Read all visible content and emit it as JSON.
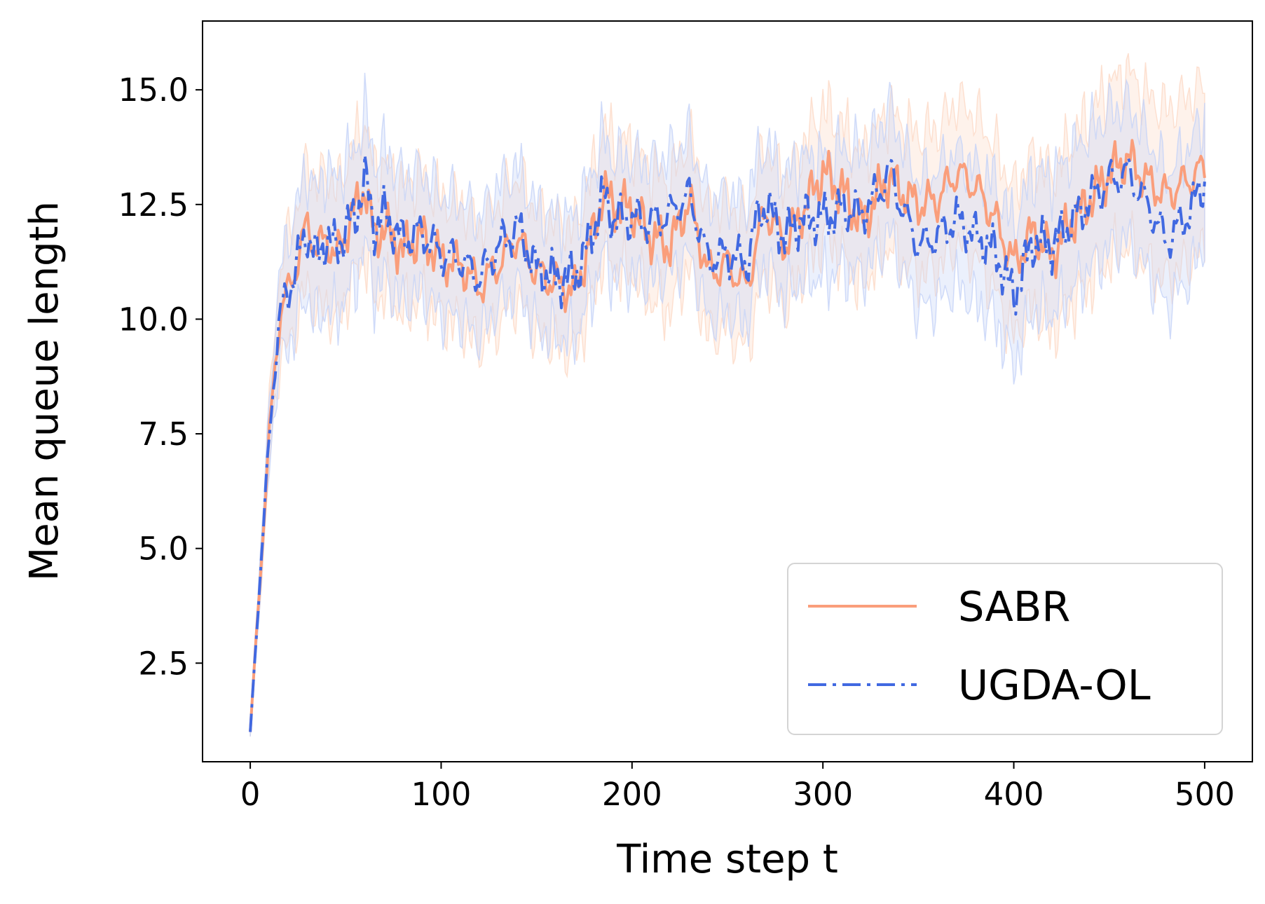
{
  "chart_data": {
    "type": "line",
    "title": "",
    "xlabel": "Time step t",
    "ylabel": "Mean queue length",
    "xlim": [
      -25,
      525
    ],
    "ylim": [
      0.35,
      16.5
    ],
    "xticks": [
      0,
      100,
      200,
      300,
      400,
      500
    ],
    "xtick_labels": [
      "0",
      "100",
      "200",
      "300",
      "400",
      "500"
    ],
    "yticks": [
      2.5,
      5.0,
      7.5,
      10.0,
      12.5,
      15.0
    ],
    "ytick_labels": [
      "2.5",
      "5.0",
      "7.5",
      "10.0",
      "12.5",
      "15.0"
    ],
    "grid": false,
    "legend_position": "lower-right",
    "series": [
      {
        "name": "SABR",
        "color": "#fa9e7b",
        "line_style": "solid",
        "band_color": "#fdd9c7",
        "keypoints": [
          [
            0,
            1.0
          ],
          [
            3,
            3.0
          ],
          [
            7,
            5.5
          ],
          [
            10,
            7.5
          ],
          [
            13,
            9.0
          ],
          [
            16,
            10.2
          ],
          [
            20,
            10.6
          ],
          [
            25,
            11.3
          ],
          [
            30,
            12.1
          ],
          [
            35,
            11.5
          ],
          [
            40,
            11.8
          ],
          [
            45,
            11.3
          ],
          [
            50,
            11.9
          ],
          [
            55,
            12.4
          ],
          [
            60,
            12.9
          ],
          [
            65,
            11.8
          ],
          [
            70,
            12.0
          ],
          [
            80,
            11.5
          ],
          [
            90,
            11.8
          ],
          [
            100,
            11.3
          ],
          [
            110,
            11.2
          ],
          [
            120,
            10.7
          ],
          [
            130,
            11.2
          ],
          [
            140,
            11.8
          ],
          [
            150,
            11.0
          ],
          [
            160,
            10.8
          ],
          [
            170,
            10.6
          ],
          [
            180,
            11.9
          ],
          [
            185,
            12.8
          ],
          [
            190,
            12.5
          ],
          [
            200,
            12.4
          ],
          [
            210,
            11.8
          ],
          [
            220,
            11.6
          ],
          [
            230,
            12.6
          ],
          [
            240,
            11.0
          ],
          [
            250,
            11.2
          ],
          [
            260,
            10.7
          ],
          [
            265,
            11.6
          ],
          [
            270,
            12.4
          ],
          [
            280,
            11.6
          ],
          [
            290,
            12.4
          ],
          [
            300,
            13.2
          ],
          [
            310,
            12.8
          ],
          [
            320,
            12.1
          ],
          [
            330,
            12.8
          ],
          [
            335,
            13.1
          ],
          [
            340,
            12.8
          ],
          [
            350,
            12.5
          ],
          [
            360,
            12.6
          ],
          [
            370,
            13.2
          ],
          [
            380,
            12.9
          ],
          [
            390,
            12.2
          ],
          [
            400,
            11.2
          ],
          [
            410,
            11.9
          ],
          [
            420,
            11.4
          ],
          [
            430,
            12.1
          ],
          [
            440,
            12.6
          ],
          [
            450,
            13.2
          ],
          [
            460,
            13.5
          ],
          [
            470,
            13.0
          ],
          [
            480,
            12.7
          ],
          [
            490,
            13.0
          ],
          [
            500,
            13.3
          ]
        ],
        "band_halfwidth": [
          [
            0,
            0.1
          ],
          [
            10,
            0.7
          ],
          [
            20,
            1.2
          ],
          [
            40,
            1.5
          ],
          [
            100,
            1.3
          ],
          [
            200,
            1.4
          ],
          [
            300,
            1.4
          ],
          [
            400,
            1.6
          ],
          [
            450,
            1.9
          ],
          [
            500,
            1.8
          ]
        ]
      },
      {
        "name": "UGDA-OL",
        "color": "#4169e1",
        "line_style": "dashdot",
        "band_color": "#c6d3f7",
        "keypoints": [
          [
            0,
            1.0
          ],
          [
            3,
            3.0
          ],
          [
            7,
            5.5
          ],
          [
            10,
            7.5
          ],
          [
            13,
            9.0
          ],
          [
            16,
            10.2
          ],
          [
            20,
            10.6
          ],
          [
            25,
            11.3
          ],
          [
            30,
            11.9
          ],
          [
            35,
            11.3
          ],
          [
            40,
            11.8
          ],
          [
            45,
            11.5
          ],
          [
            50,
            12.0
          ],
          [
            55,
            12.2
          ],
          [
            60,
            13.1
          ],
          [
            65,
            12.0
          ],
          [
            70,
            12.3
          ],
          [
            80,
            11.7
          ],
          [
            90,
            11.9
          ],
          [
            100,
            11.4
          ],
          [
            110,
            11.3
          ],
          [
            120,
            10.9
          ],
          [
            130,
            11.6
          ],
          [
            140,
            12.0
          ],
          [
            150,
            11.1
          ],
          [
            160,
            10.9
          ],
          [
            170,
            10.9
          ],
          [
            180,
            12.0
          ],
          [
            185,
            12.7
          ],
          [
            190,
            12.2
          ],
          [
            200,
            12.2
          ],
          [
            210,
            12.1
          ],
          [
            220,
            12.3
          ],
          [
            230,
            12.7
          ],
          [
            240,
            11.3
          ],
          [
            250,
            11.4
          ],
          [
            260,
            11.2
          ],
          [
            265,
            12.1
          ],
          [
            270,
            12.5
          ],
          [
            280,
            11.8
          ],
          [
            290,
            12.2
          ],
          [
            300,
            12.2
          ],
          [
            310,
            12.4
          ],
          [
            320,
            12.3
          ],
          [
            330,
            12.8
          ],
          [
            335,
            13.3
          ],
          [
            340,
            12.6
          ],
          [
            350,
            11.6
          ],
          [
            360,
            11.8
          ],
          [
            370,
            12.2
          ],
          [
            380,
            11.8
          ],
          [
            390,
            11.5
          ],
          [
            400,
            10.5
          ],
          [
            410,
            11.7
          ],
          [
            420,
            11.6
          ],
          [
            430,
            12.1
          ],
          [
            440,
            12.6
          ],
          [
            450,
            13.0
          ],
          [
            460,
            13.2
          ],
          [
            470,
            12.5
          ],
          [
            480,
            11.7
          ],
          [
            490,
            12.2
          ],
          [
            500,
            13.0
          ]
        ],
        "band_halfwidth": [
          [
            0,
            0.1
          ],
          [
            10,
            0.7
          ],
          [
            20,
            1.2
          ],
          [
            40,
            1.5
          ],
          [
            100,
            1.3
          ],
          [
            200,
            1.3
          ],
          [
            300,
            1.3
          ],
          [
            400,
            1.5
          ],
          [
            450,
            1.5
          ],
          [
            500,
            1.4
          ]
        ]
      }
    ]
  }
}
